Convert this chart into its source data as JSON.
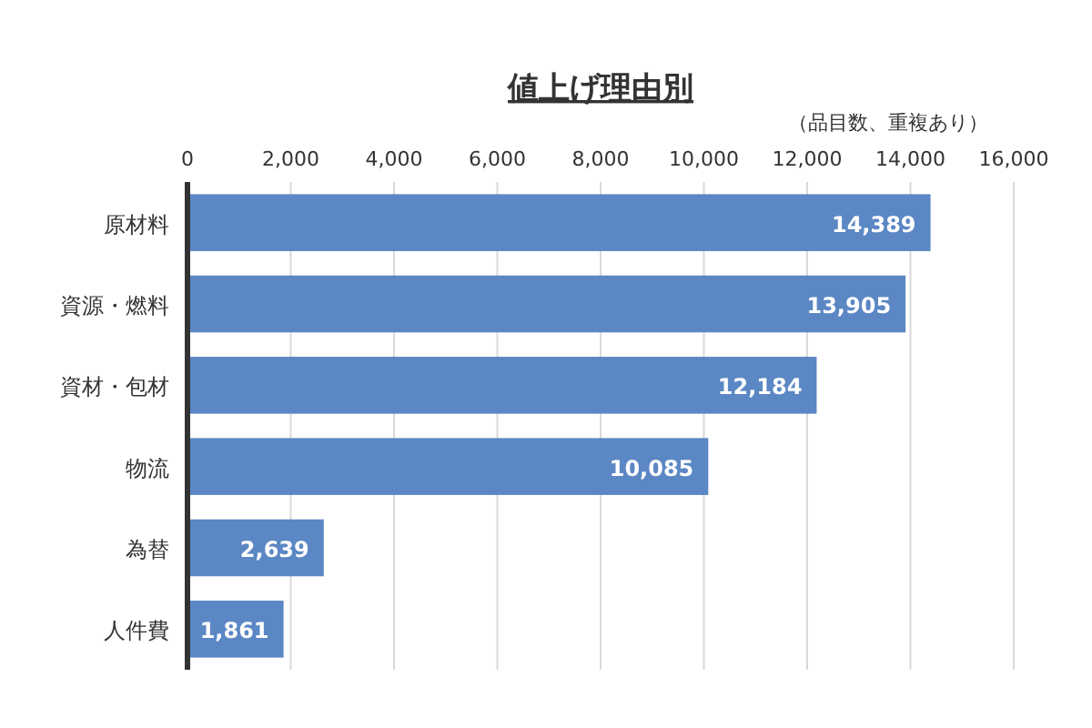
{
  "chart_data": {
    "type": "bar",
    "orientation": "horizontal",
    "title": "値上げ理由別",
    "xlabel": "（品目数、重複あり）",
    "categories": [
      "原材料",
      "資源・燃料",
      "資材・包材",
      "物流",
      "為替",
      "人件費"
    ],
    "values": [
      14389,
      13905,
      12184,
      10085,
      2639,
      1861
    ],
    "value_labels": [
      "14,389",
      "13,905",
      "12,184",
      "10,085",
      "2,639",
      "1,861"
    ],
    "color": "#5b87c4",
    "xlim": [
      0,
      16000
    ],
    "xticks": [
      0,
      {
        "value": 2000,
        "label": "2,000"
      },
      {
        "value": 4000,
        "label": "4,000"
      },
      {
        "value": 6000,
        "label": "6,000"
      },
      {
        "value": 8000,
        "label": "8,000"
      },
      {
        "value": 10000,
        "label": "10,000"
      },
      {
        "value": 12000,
        "label": "12,000"
      },
      {
        "value": 14000,
        "label": "14,000"
      },
      {
        "value": 16000,
        "label": "16,000"
      }
    ],
    "grid": "x"
  }
}
